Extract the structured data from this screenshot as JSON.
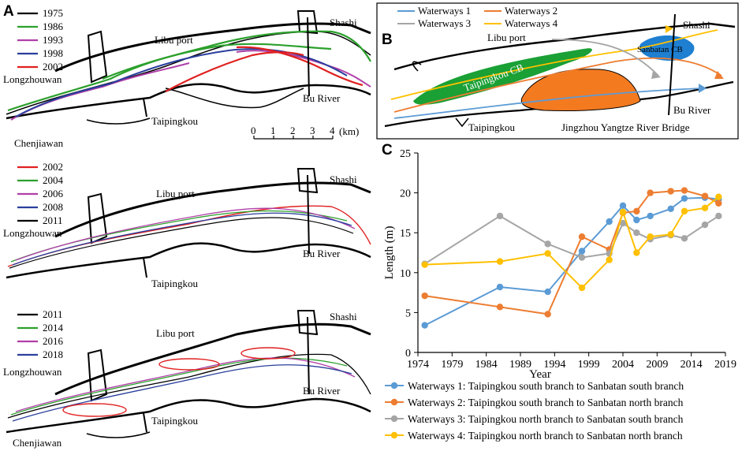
{
  "panels": {
    "A": {
      "label": "A",
      "top": {
        "legend": [
          {
            "year": "1975",
            "color": "#000000"
          },
          {
            "year": "1986",
            "color": "#2ca02c"
          },
          {
            "year": "1993",
            "color": "#b03fa8"
          },
          {
            "year": "1998",
            "color": "#2a3f9d"
          },
          {
            "year": "2002",
            "color": "#e02020"
          }
        ],
        "places": {
          "libu_port": "Libu port",
          "shashi": "Shashi",
          "longzhouwan": "Longzhouwan",
          "bu_river": "Bu River",
          "taipingkou": "Taipingkou",
          "chenjiawan": "Chenjiawan"
        },
        "scale": {
          "ticks": [
            "0",
            "1",
            "2",
            "3",
            "4"
          ],
          "unit": "(km)"
        }
      },
      "middle": {
        "legend": [
          {
            "year": "2002",
            "color": "#e02020"
          },
          {
            "year": "2004",
            "color": "#2ca02c"
          },
          {
            "year": "2006",
            "color": "#b03fa8"
          },
          {
            "year": "2008",
            "color": "#2a3f9d"
          },
          {
            "year": "2011",
            "color": "#000000"
          }
        ],
        "places": {
          "libu_port": "Libu port",
          "shashi": "Shashi",
          "longzhouwan": "Longzhouwan",
          "bu_river": "Bu River",
          "taipingkou": "Taipingkou"
        }
      },
      "bottom": {
        "legend": [
          {
            "year": "2011",
            "color": "#000000"
          },
          {
            "year": "2014",
            "color": "#2ca02c"
          },
          {
            "year": "2016",
            "color": "#b03fa8"
          },
          {
            "year": "2018",
            "color": "#2a3f9d"
          }
        ],
        "places": {
          "libu_port": "Libu port",
          "shashi": "Shashi",
          "longzhouwan": "Longzhouwan",
          "bu_river": "Bu River",
          "taipingkou": "Taipingkou",
          "chenjiawan": "Chenjiawan"
        }
      }
    },
    "B": {
      "label": "B",
      "legend": [
        {
          "name": "Waterways 1",
          "color": "#5b9bd5"
        },
        {
          "name": "Waterways 2",
          "color": "#ed7d31"
        },
        {
          "name": "Waterways 3",
          "color": "#a5a5a5"
        },
        {
          "name": "Waterways 4",
          "color": "#ffc000"
        }
      ],
      "places": {
        "libu_port": "Libu port",
        "shashi": "Shashi",
        "taipingkou_cb": "Taipingkou CB",
        "sanbatan_cb": "Sanbatan CB",
        "bu_river": "Bu River",
        "taipingkou": "Taipingkou",
        "bridge": "Jingzhou Yangtze River Bridge"
      },
      "colors": {
        "taipingkou_cb": "#1aa035",
        "middle_bar": "#f47a20",
        "sanbatan_cb": "#1f7fd1"
      }
    },
    "C": {
      "label": "C"
    }
  },
  "chart_data": {
    "type": "line",
    "title": "",
    "xlabel": "Year",
    "ylabel": "Length (m)",
    "xlim": [
      1974,
      2019
    ],
    "ylim": [
      0,
      25
    ],
    "xticks": [
      1974,
      1979,
      1984,
      1989,
      1994,
      1999,
      2004,
      2009,
      2014,
      2019
    ],
    "yticks": [
      0,
      5,
      10,
      15,
      20,
      25
    ],
    "legend_position": "bottom",
    "series": [
      {
        "name": "Waterways 1: Taipingkou south branch to Sanbatan south branch",
        "color": "#5b9bd5",
        "x": [
          1975,
          1986,
          1993,
          1998,
          2002,
          2004,
          2006,
          2008,
          2011,
          2013,
          2016,
          2018
        ],
        "y": [
          3.4,
          8.2,
          7.6,
          12.7,
          16.4,
          18.4,
          16.6,
          17.1,
          18.0,
          19.3,
          19.4,
          19.2
        ]
      },
      {
        "name": "Waterways 2: Taipingkou south branch to Sanbatan north branch",
        "color": "#ed7d31",
        "x": [
          1975,
          1986,
          1993,
          1998,
          2002,
          2004,
          2006,
          2008,
          2011,
          2013,
          2016,
          2018
        ],
        "y": [
          7.1,
          5.7,
          4.8,
          14.5,
          12.9,
          17.5,
          17.7,
          20.0,
          20.2,
          20.3,
          19.6,
          18.7
        ]
      },
      {
        "name": "Waterways 3: Taipingkou north branch to Sanbatan south branch",
        "color": "#a5a5a5",
        "x": [
          1975,
          1986,
          1993,
          1998,
          2002,
          2004,
          2006,
          2008,
          2011,
          2013,
          2016,
          2018
        ],
        "y": [
          11.1,
          17.1,
          13.6,
          11.9,
          12.4,
          16.2,
          15.0,
          14.2,
          14.7,
          14.3,
          16.0,
          17.1
        ]
      },
      {
        "name": "Waterways 4: Taipingkou north branch to Sanbatan north branch",
        "color": "#ffc000",
        "x": [
          1975,
          1986,
          1993,
          1998,
          2002,
          2004,
          2006,
          2008,
          2011,
          2013,
          2016,
          2018
        ],
        "y": [
          11.0,
          11.4,
          12.4,
          8.1,
          11.6,
          17.6,
          12.5,
          14.5,
          14.8,
          17.7,
          18.1,
          19.5
        ]
      }
    ]
  }
}
